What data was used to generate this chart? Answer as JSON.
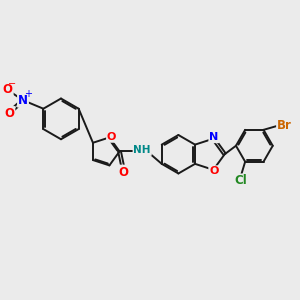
{
  "bg_color": "#ebebeb",
  "bond_color": "#1a1a1a",
  "bond_lw": 1.4,
  "dbo": 0.055,
  "figsize": [
    3.0,
    3.0
  ],
  "dpi": 100,
  "xlim": [
    0.0,
    10.5
  ],
  "ylim": [
    0.5,
    7.5
  ]
}
